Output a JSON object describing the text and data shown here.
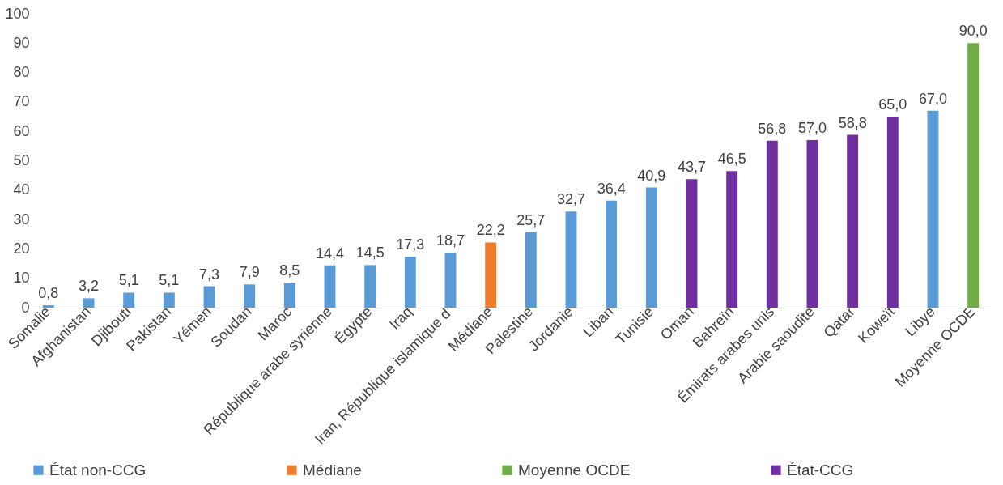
{
  "chart_data": {
    "type": "bar",
    "categories": [
      "Somalie",
      "Afghanistan",
      "Djibouti",
      "Pakistan",
      "Yémen",
      "Soudan",
      "Maroc",
      "République arabe syrienne",
      "Égypte",
      "Iraq",
      "Iran, République islamique d'",
      "Médiane",
      "Palestine",
      "Jordanie",
      "Liban",
      "Tunisie",
      "Oman",
      "Bahreïn",
      "Émirats arabes unis",
      "Arabie saoudite",
      "Qatar",
      "Koweït",
      "Libye",
      "Moyenne OCDE"
    ],
    "series": [
      {
        "name": "État non-CCG",
        "color": "#5b9bd5",
        "values": [
          0.8,
          3.2,
          5.1,
          5.1,
          7.3,
          7.9,
          8.5,
          14.4,
          14.5,
          17.3,
          18.7,
          null,
          25.7,
          32.7,
          36.4,
          40.9,
          null,
          null,
          null,
          null,
          null,
          null,
          67.0,
          null
        ],
        "value_labels": [
          "0,8",
          "3,2",
          "5,1",
          "5,1",
          "7,3",
          "7,9",
          "8,5",
          "14,4",
          "14,5",
          "17,3",
          "18,7",
          null,
          "25,7",
          "32,7",
          "36,4",
          "40,9",
          null,
          null,
          null,
          null,
          null,
          null,
          "67,0",
          null
        ]
      },
      {
        "name": "Médiane",
        "color": "#ed7d31",
        "values": [
          null,
          null,
          null,
          null,
          null,
          null,
          null,
          null,
          null,
          null,
          null,
          22.2,
          null,
          null,
          null,
          null,
          null,
          null,
          null,
          null,
          null,
          null,
          null,
          null
        ],
        "value_labels": [
          null,
          null,
          null,
          null,
          null,
          null,
          null,
          null,
          null,
          null,
          null,
          "22,2",
          null,
          null,
          null,
          null,
          null,
          null,
          null,
          null,
          null,
          null,
          null,
          null
        ]
      },
      {
        "name": "Moyenne OCDE",
        "color": "#70ad47",
        "values": [
          null,
          null,
          null,
          null,
          null,
          null,
          null,
          null,
          null,
          null,
          null,
          null,
          null,
          null,
          null,
          null,
          null,
          null,
          null,
          null,
          null,
          null,
          null,
          90.0
        ],
        "value_labels": [
          null,
          null,
          null,
          null,
          null,
          null,
          null,
          null,
          null,
          null,
          null,
          null,
          null,
          null,
          null,
          null,
          null,
          null,
          null,
          null,
          null,
          null,
          null,
          "90,0"
        ]
      },
      {
        "name": "État-CCG",
        "color": "#7030a0",
        "values": [
          null,
          null,
          null,
          null,
          null,
          null,
          null,
          null,
          null,
          null,
          null,
          null,
          null,
          null,
          null,
          null,
          43.7,
          46.5,
          56.8,
          57.0,
          58.8,
          65.0,
          null,
          null
        ],
        "value_labels": [
          null,
          null,
          null,
          null,
          null,
          null,
          null,
          null,
          null,
          null,
          null,
          null,
          null,
          null,
          null,
          null,
          "43,7",
          "46,5",
          "56,8",
          "57,0",
          "58,8",
          "65,0",
          null,
          null
        ]
      }
    ],
    "ylim": [
      0,
      100
    ],
    "yticks": [
      0,
      10,
      20,
      30,
      40,
      50,
      60,
      70,
      80,
      90,
      100
    ],
    "grid": false,
    "legend": "bottom"
  }
}
